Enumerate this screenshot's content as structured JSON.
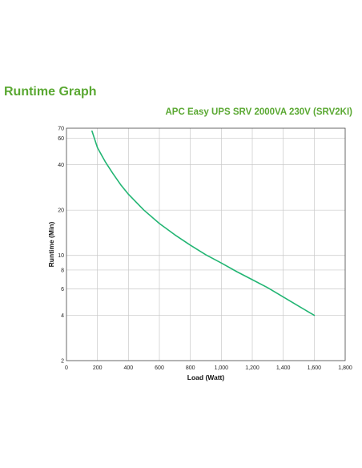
{
  "page": {
    "title": "Runtime Graph"
  },
  "colors": {
    "brand_green": "#5aa832",
    "series_line": "#22b573",
    "grid": "#c8c8c8",
    "frame": "#444444"
  },
  "chart_data": {
    "type": "line",
    "title": "",
    "subtitle": "APC Easy UPS SRV 2000VA 230V (SRV2KI)",
    "xlabel": "Load (Watt)",
    "ylabel": "Runtime (Min)",
    "xlim": [
      0,
      1800
    ],
    "ylim": [
      2,
      70
    ],
    "y_scale": "log",
    "grid": true,
    "legend": "none",
    "x_ticks": [
      {
        "value": 0,
        "label": "0"
      },
      {
        "value": 200,
        "label": "200"
      },
      {
        "value": 400,
        "label": "400"
      },
      {
        "value": 600,
        "label": "600"
      },
      {
        "value": 800,
        "label": "800"
      },
      {
        "value": 1000,
        "label": "1,000"
      },
      {
        "value": 1200,
        "label": "1,200"
      },
      {
        "value": 1400,
        "label": "1,400"
      },
      {
        "value": 1600,
        "label": "1,600"
      },
      {
        "value": 1800,
        "label": "1,800"
      }
    ],
    "y_ticks": [
      {
        "value": 2,
        "label": "2"
      },
      {
        "value": 4,
        "label": "4"
      },
      {
        "value": 6,
        "label": "6"
      },
      {
        "value": 8,
        "label": "8"
      },
      {
        "value": 10,
        "label": "10"
      },
      {
        "value": 20,
        "label": "20"
      },
      {
        "value": 40,
        "label": "40"
      },
      {
        "value": 60,
        "label": "60"
      },
      {
        "value": 70,
        "label": "70"
      }
    ],
    "series": [
      {
        "x": [
          165,
          200,
          250,
          300,
          350,
          400,
          500,
          600,
          700,
          800,
          900,
          1000,
          1100,
          1200,
          1300,
          1400,
          1500,
          1600
        ],
        "y": [
          67,
          52,
          42,
          35,
          29.5,
          25.5,
          20,
          16.3,
          13.7,
          11.7,
          10.1,
          8.9,
          7.8,
          6.9,
          6.1,
          5.3,
          4.6,
          4.0
        ]
      }
    ]
  }
}
